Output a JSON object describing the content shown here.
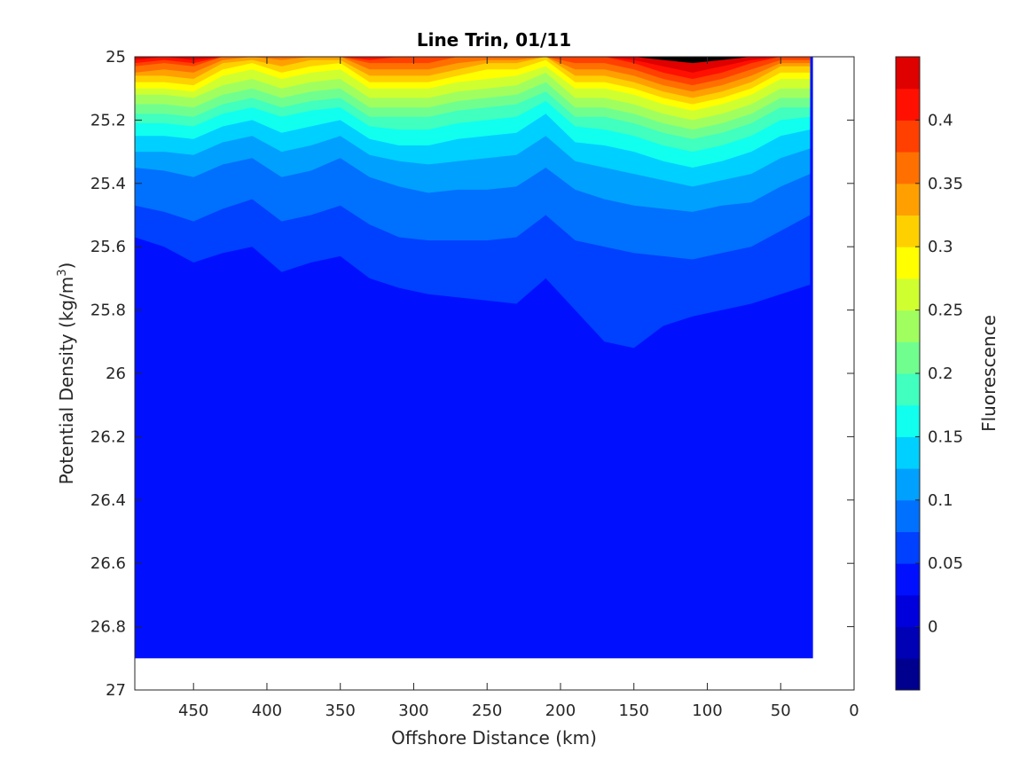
{
  "chart_data": {
    "type": "contour",
    "title": "Line Trin, 01/11",
    "xlabel": "Offshore Distance (km)",
    "ylabel_main": "Potential Density (kg/m",
    "ylabel_sup": "3",
    "ylabel_close": ")",
    "colorbar_label": "Fluorescence",
    "xlim": [
      490,
      0
    ],
    "x_reversed": true,
    "ylim": [
      25,
      27
    ],
    "y_reversed": true,
    "x_ticks": [
      450,
      400,
      350,
      300,
      250,
      200,
      150,
      100,
      50,
      0
    ],
    "y_ticks": [
      25,
      25.2,
      25.4,
      25.6,
      25.8,
      26,
      26.2,
      26.4,
      26.6,
      26.8,
      27
    ],
    "y_tick_labels": [
      "25",
      "25.2",
      "25.4",
      "25.6",
      "25.8",
      "26",
      "26.2",
      "26.4",
      "26.6",
      "26.8",
      "27"
    ],
    "clim": [
      -0.05,
      0.45
    ],
    "levels": [
      -0.05,
      -0.025,
      0,
      0.025,
      0.05,
      0.075,
      0.1,
      0.125,
      0.15,
      0.175,
      0.2,
      0.225,
      0.25,
      0.275,
      0.3,
      0.325,
      0.35,
      0.375,
      0.4,
      0.425,
      0.45
    ],
    "colorbar_ticks": [
      0,
      0.05,
      0.1,
      0.15,
      0.2,
      0.25,
      0.3,
      0.35,
      0.4
    ],
    "colorbar_tick_labels": [
      "0",
      "0.05",
      "0.1",
      "0.15",
      "0.2",
      "0.25",
      "0.3",
      "0.35",
      "0.4"
    ],
    "colormap": "jet",
    "band_colors": [
      "#00008f",
      "#0000b4",
      "#0000dc",
      "#0010ff",
      "#0040ff",
      "#0070ff",
      "#00a0ff",
      "#00d0ff",
      "#10ffef",
      "#40ffbf",
      "#70ff8f",
      "#a0ff5f",
      "#d0ff30",
      "#ffff00",
      "#ffd000",
      "#ffa000",
      "#ff7000",
      "#ff4000",
      "#ff1000",
      "#df0000"
    ],
    "section_extent_x": [
      490,
      28
    ],
    "section_extent_y": [
      25,
      26.9
    ],
    "grid": false,
    "x_stations": [
      490,
      470,
      450,
      430,
      410,
      390,
      370,
      350,
      330,
      310,
      290,
      270,
      250,
      230,
      210,
      190,
      170,
      150,
      130,
      110,
      90,
      70,
      50,
      30
    ],
    "layer_boundaries": [
      {
        "level": 0.425,
        "density": [
          25.0,
          25.0,
          25.0,
          25.0,
          25.0,
          25.0,
          25.0,
          25.0,
          25.0,
          25.0,
          25.0,
          25.0,
          25.0,
          25.0,
          25.0,
          25.0,
          25.0,
          25.0,
          25.01,
          25.02,
          25.01,
          25.0,
          25.0,
          25.0
        ]
      },
      {
        "level": 0.4,
        "density": [
          25.01,
          25.0,
          25.01,
          25.0,
          25.0,
          25.0,
          25.0,
          25.0,
          25.0,
          25.0,
          25.0,
          25.0,
          25.0,
          25.0,
          25.0,
          25.0,
          25.0,
          25.01,
          25.03,
          25.05,
          25.03,
          25.01,
          25.0,
          25.0
        ]
      },
      {
        "level": 0.375,
        "density": [
          25.02,
          25.01,
          25.02,
          25.0,
          25.0,
          25.0,
          25.0,
          25.0,
          25.01,
          25.0,
          25.0,
          25.0,
          25.0,
          25.0,
          25.0,
          25.0,
          25.0,
          25.02,
          25.05,
          25.07,
          25.05,
          25.02,
          25.0,
          25.0
        ]
      },
      {
        "level": 0.35,
        "density": [
          25.03,
          25.02,
          25.03,
          25.0,
          25.0,
          25.0,
          25.0,
          25.0,
          25.02,
          25.02,
          25.02,
          25.0,
          25.0,
          25.0,
          25.0,
          25.02,
          25.02,
          25.04,
          25.07,
          25.09,
          25.07,
          25.04,
          25.01,
          25.01
        ]
      },
      {
        "level": 0.325,
        "density": [
          25.05,
          25.04,
          25.05,
          25.01,
          25.0,
          25.01,
          25.0,
          25.0,
          25.04,
          25.04,
          25.04,
          25.02,
          25.01,
          25.01,
          25.0,
          25.04,
          25.04,
          25.06,
          25.09,
          25.11,
          25.09,
          25.06,
          25.02,
          25.02
        ]
      },
      {
        "level": 0.3,
        "density": [
          25.06,
          25.06,
          25.07,
          25.02,
          25.01,
          25.03,
          25.01,
          25.01,
          25.06,
          25.06,
          25.06,
          25.04,
          25.02,
          25.02,
          25.0,
          25.06,
          25.06,
          25.08,
          25.11,
          25.13,
          25.11,
          25.08,
          25.03,
          25.03
        ]
      },
      {
        "level": 0.275,
        "density": [
          25.08,
          25.08,
          25.09,
          25.04,
          25.02,
          25.05,
          25.03,
          25.02,
          25.08,
          25.08,
          25.08,
          25.06,
          25.04,
          25.04,
          25.01,
          25.08,
          25.08,
          25.1,
          25.13,
          25.15,
          25.13,
          25.1,
          25.05,
          25.05
        ]
      },
      {
        "level": 0.25,
        "density": [
          25.1,
          25.1,
          25.11,
          25.06,
          25.04,
          25.07,
          25.05,
          25.04,
          25.1,
          25.1,
          25.1,
          25.08,
          25.07,
          25.06,
          25.03,
          25.1,
          25.1,
          25.12,
          25.15,
          25.17,
          25.15,
          25.12,
          25.07,
          25.07
        ]
      },
      {
        "level": 0.225,
        "density": [
          25.12,
          25.12,
          25.13,
          25.09,
          25.07,
          25.1,
          25.08,
          25.07,
          25.13,
          25.13,
          25.13,
          25.11,
          25.1,
          25.09,
          25.05,
          25.13,
          25.13,
          25.15,
          25.18,
          25.2,
          25.18,
          25.15,
          25.1,
          25.1
        ]
      },
      {
        "level": 0.2,
        "density": [
          25.15,
          25.15,
          25.16,
          25.12,
          25.1,
          25.13,
          25.11,
          25.1,
          25.16,
          25.16,
          25.16,
          25.14,
          25.13,
          25.12,
          25.08,
          25.16,
          25.16,
          25.18,
          25.21,
          25.23,
          25.21,
          25.18,
          25.13,
          25.13
        ]
      },
      {
        "level": 0.175,
        "density": [
          25.18,
          25.18,
          25.19,
          25.15,
          25.13,
          25.16,
          25.14,
          25.13,
          25.19,
          25.19,
          25.19,
          25.17,
          25.16,
          25.15,
          25.11,
          25.19,
          25.19,
          25.21,
          25.24,
          25.26,
          25.24,
          25.21,
          25.16,
          25.16
        ]
      },
      {
        "level": 0.15,
        "density": [
          25.21,
          25.21,
          25.22,
          25.18,
          25.16,
          25.19,
          25.17,
          25.16,
          25.22,
          25.23,
          25.23,
          25.21,
          25.2,
          25.19,
          25.14,
          25.22,
          25.23,
          25.25,
          25.28,
          25.3,
          25.28,
          25.25,
          25.2,
          25.19
        ]
      },
      {
        "level": 0.125,
        "density": [
          25.25,
          25.25,
          25.26,
          25.22,
          25.2,
          25.24,
          25.22,
          25.2,
          25.26,
          25.28,
          25.28,
          25.26,
          25.25,
          25.24,
          25.18,
          25.27,
          25.28,
          25.3,
          25.33,
          25.35,
          25.33,
          25.3,
          25.25,
          25.23
        ]
      },
      {
        "level": 0.1,
        "density": [
          25.3,
          25.3,
          25.31,
          25.27,
          25.25,
          25.3,
          25.28,
          25.25,
          25.31,
          25.33,
          25.34,
          25.33,
          25.32,
          25.31,
          25.25,
          25.33,
          25.35,
          25.37,
          25.39,
          25.41,
          25.39,
          25.37,
          25.32,
          25.29
        ]
      },
      {
        "level": 0.075,
        "density": [
          25.35,
          25.36,
          25.38,
          25.34,
          25.32,
          25.38,
          25.36,
          25.32,
          25.38,
          25.41,
          25.43,
          25.42,
          25.42,
          25.41,
          25.35,
          25.42,
          25.45,
          25.47,
          25.48,
          25.49,
          25.47,
          25.46,
          25.41,
          25.37
        ]
      },
      {
        "level": 0.05,
        "density": [
          25.47,
          25.49,
          25.52,
          25.48,
          25.45,
          25.52,
          25.5,
          25.47,
          25.53,
          25.57,
          25.58,
          25.58,
          25.58,
          25.57,
          25.5,
          25.58,
          25.6,
          25.62,
          25.63,
          25.64,
          25.62,
          25.6,
          25.55,
          25.5
        ]
      },
      {
        "level": 0.025,
        "density": [
          25.57,
          25.6,
          25.65,
          25.62,
          25.6,
          25.68,
          25.65,
          25.63,
          25.7,
          25.73,
          25.75,
          25.76,
          25.77,
          25.78,
          25.7,
          25.8,
          25.9,
          25.92,
          25.85,
          25.82,
          25.8,
          25.78,
          25.75,
          25.72
        ]
      }
    ]
  }
}
